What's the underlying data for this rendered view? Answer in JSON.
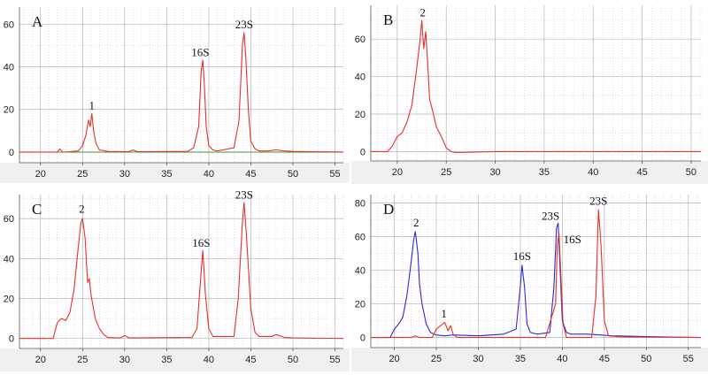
{
  "figure": {
    "background": "#ffffff",
    "plot_area_color": "#ffffff",
    "bottom_band_color": "#f0f0f0",
    "grid_color": "#c8c8c8",
    "axis_color": "#555555",
    "colors": {
      "red": "#e8302a",
      "blue": "#2a2ad8",
      "green": "#3a9a3a"
    }
  },
  "chart_data": [
    {
      "type": "line",
      "panel_label": "A",
      "xlim": [
        17.5,
        56
      ],
      "ylim": [
        -5,
        68
      ],
      "xticks": [
        20,
        25,
        30,
        35,
        40,
        45,
        50,
        55
      ],
      "yticks": [
        0,
        20,
        40,
        60
      ],
      "grid": true,
      "baseline": {
        "y": 0,
        "color": "#3a9a3a"
      },
      "series": [
        {
          "color": "#e8302a",
          "x": [
            17.5,
            22.0,
            22.3,
            22.6,
            23.0,
            24.5,
            25.0,
            25.4,
            25.7,
            25.9,
            26.1,
            26.3,
            26.6,
            27.0,
            28.0,
            30.5,
            31.0,
            31.5,
            37.5,
            38.2,
            38.8,
            39.1,
            39.3,
            39.5,
            39.7,
            40.0,
            40.5,
            41.0,
            43.0,
            43.6,
            44.0,
            44.2,
            44.4,
            44.7,
            45.0,
            45.5,
            46.0,
            47.0,
            48.0,
            49.0,
            50.0,
            52.0,
            56.0
          ],
          "y": [
            0,
            0,
            1.5,
            0,
            0,
            0.5,
            3,
            8,
            15,
            12,
            18,
            10,
            4,
            1,
            0.3,
            0.2,
            1,
            0.2,
            0.3,
            2,
            12,
            38,
            43,
            30,
            12,
            3,
            1,
            0.5,
            2,
            15,
            50,
            56,
            45,
            20,
            5,
            1.5,
            0.5,
            0.5,
            1,
            0.5,
            0.3,
            0.2,
            0
          ]
        }
      ],
      "annotations": [
        {
          "text": "1",
          "x": 26.1,
          "y": 20
        },
        {
          "text": "16S",
          "x": 39.0,
          "y": 45
        },
        {
          "text": "23S",
          "x": 44.2,
          "y": 58
        }
      ]
    },
    {
      "type": "line",
      "panel_label": "B",
      "xlim": [
        17.3,
        51
      ],
      "ylim": [
        -5,
        78
      ],
      "xticks": [
        20,
        25,
        30,
        35,
        40,
        45,
        50
      ],
      "yticks": [
        0,
        20,
        40,
        60
      ],
      "grid": true,
      "series": [
        {
          "color": "#e8302a",
          "x": [
            17.3,
            19.0,
            19.5,
            20.0,
            20.5,
            21.0,
            21.5,
            22.0,
            22.3,
            22.5,
            22.7,
            22.9,
            23.1,
            23.3,
            23.6,
            24.0,
            24.5,
            25.0,
            25.5,
            26.0,
            30.0,
            40.0,
            51.0
          ],
          "y": [
            0,
            0,
            3,
            8,
            10,
            16,
            25,
            45,
            58,
            70,
            55,
            64,
            48,
            28,
            22,
            13,
            8,
            2,
            0,
            -0.5,
            0,
            0,
            0
          ]
        }
      ],
      "annotations": [
        {
          "text": "2",
          "x": 22.6,
          "y": 72
        }
      ]
    },
    {
      "type": "line",
      "panel_label": "C",
      "xlim": [
        17.5,
        56
      ],
      "ylim": [
        -5,
        72
      ],
      "xticks": [
        20,
        25,
        30,
        35,
        40,
        45,
        50,
        55
      ],
      "yticks": [
        0,
        20,
        40,
        60
      ],
      "grid": true,
      "series": [
        {
          "color": "#e8302a",
          "x": [
            17.5,
            21.5,
            22.0,
            22.5,
            23.0,
            23.5,
            24.0,
            24.4,
            24.8,
            25.0,
            25.3,
            25.6,
            25.8,
            26.0,
            26.5,
            27.0,
            27.5,
            28.0,
            29.5,
            30.0,
            30.5,
            38.0,
            38.6,
            39.0,
            39.3,
            39.6,
            40.0,
            40.5,
            43.0,
            43.5,
            44.0,
            44.2,
            44.5,
            45.0,
            45.5,
            46.0,
            47.5,
            48.0,
            49.0,
            50.0,
            56.0
          ],
          "y": [
            0,
            0,
            8,
            10,
            9,
            13,
            25,
            42,
            58,
            60,
            50,
            28,
            30,
            22,
            10,
            5,
            2,
            0.5,
            0.3,
            1.5,
            0.3,
            0.5,
            5,
            28,
            44,
            22,
            5,
            1,
            1,
            20,
            58,
            68,
            50,
            15,
            3,
            1,
            1,
            2,
            0.5,
            0.3,
            0
          ]
        }
      ],
      "annotations": [
        {
          "text": "2",
          "x": 24.9,
          "y": 63
        },
        {
          "text": "16S",
          "x": 39.1,
          "y": 46
        },
        {
          "text": "23S",
          "x": 44.2,
          "y": 70
        }
      ]
    },
    {
      "type": "line",
      "panel_label": "D",
      "xlim": [
        17.2,
        56.5
      ],
      "ylim": [
        -6,
        85
      ],
      "xticks": [
        20,
        25,
        30,
        35,
        40,
        45,
        50,
        55
      ],
      "yticks": [
        0,
        20,
        40,
        60,
        80
      ],
      "grid": true,
      "series": [
        {
          "color": "#2a2ad8",
          "x": [
            17.2,
            19.5,
            20.0,
            20.5,
            21.0,
            21.5,
            22.0,
            22.3,
            22.5,
            22.8,
            23.0,
            23.3,
            23.8,
            24.3,
            25.0,
            26.0,
            27.0,
            30.0,
            33.0,
            34.5,
            35.0,
            35.2,
            35.5,
            35.8,
            36.2,
            37.0,
            38.5,
            39.0,
            39.3,
            39.5,
            39.7,
            40.0,
            40.5,
            41.0,
            43.0,
            46.0,
            50.0,
            56.5
          ],
          "y": [
            0,
            0,
            5,
            8,
            12,
            25,
            45,
            58,
            63,
            50,
            32,
            20,
            8,
            3,
            1.5,
            1,
            1.5,
            1,
            2,
            5,
            30,
            43,
            30,
            8,
            3,
            2,
            3,
            30,
            65,
            68,
            45,
            10,
            3,
            2,
            2,
            1,
            0.5,
            0
          ]
        },
        {
          "color": "#e8302a",
          "x": [
            17.2,
            22.0,
            22.5,
            23.0,
            24.5,
            25.0,
            25.5,
            26.0,
            26.4,
            26.7,
            27.0,
            27.5,
            30.0,
            38.0,
            39.2,
            39.4,
            39.6,
            39.8,
            40.1,
            40.5,
            43.5,
            44.0,
            44.3,
            44.6,
            45.0,
            45.5,
            46.5,
            48.0,
            56.5
          ],
          "y": [
            0,
            0,
            1,
            0,
            0,
            5,
            7,
            9,
            4,
            7,
            2,
            0,
            0,
            0,
            20,
            55,
            62,
            40,
            8,
            0,
            0,
            25,
            76,
            55,
            10,
            1,
            0.5,
            0.3,
            0
          ]
        }
      ],
      "annotations": [
        {
          "text": "2",
          "x": 22.6,
          "y": 66
        },
        {
          "text": "1",
          "x": 25.9,
          "y": 12
        },
        {
          "text": "16S",
          "x": 35.2,
          "y": 46
        },
        {
          "text": "23S",
          "x": 38.6,
          "y": 70
        },
        {
          "text": "16S",
          "x": 41.2,
          "y": 56
        },
        {
          "text": "23S",
          "x": 44.3,
          "y": 79
        }
      ]
    }
  ]
}
